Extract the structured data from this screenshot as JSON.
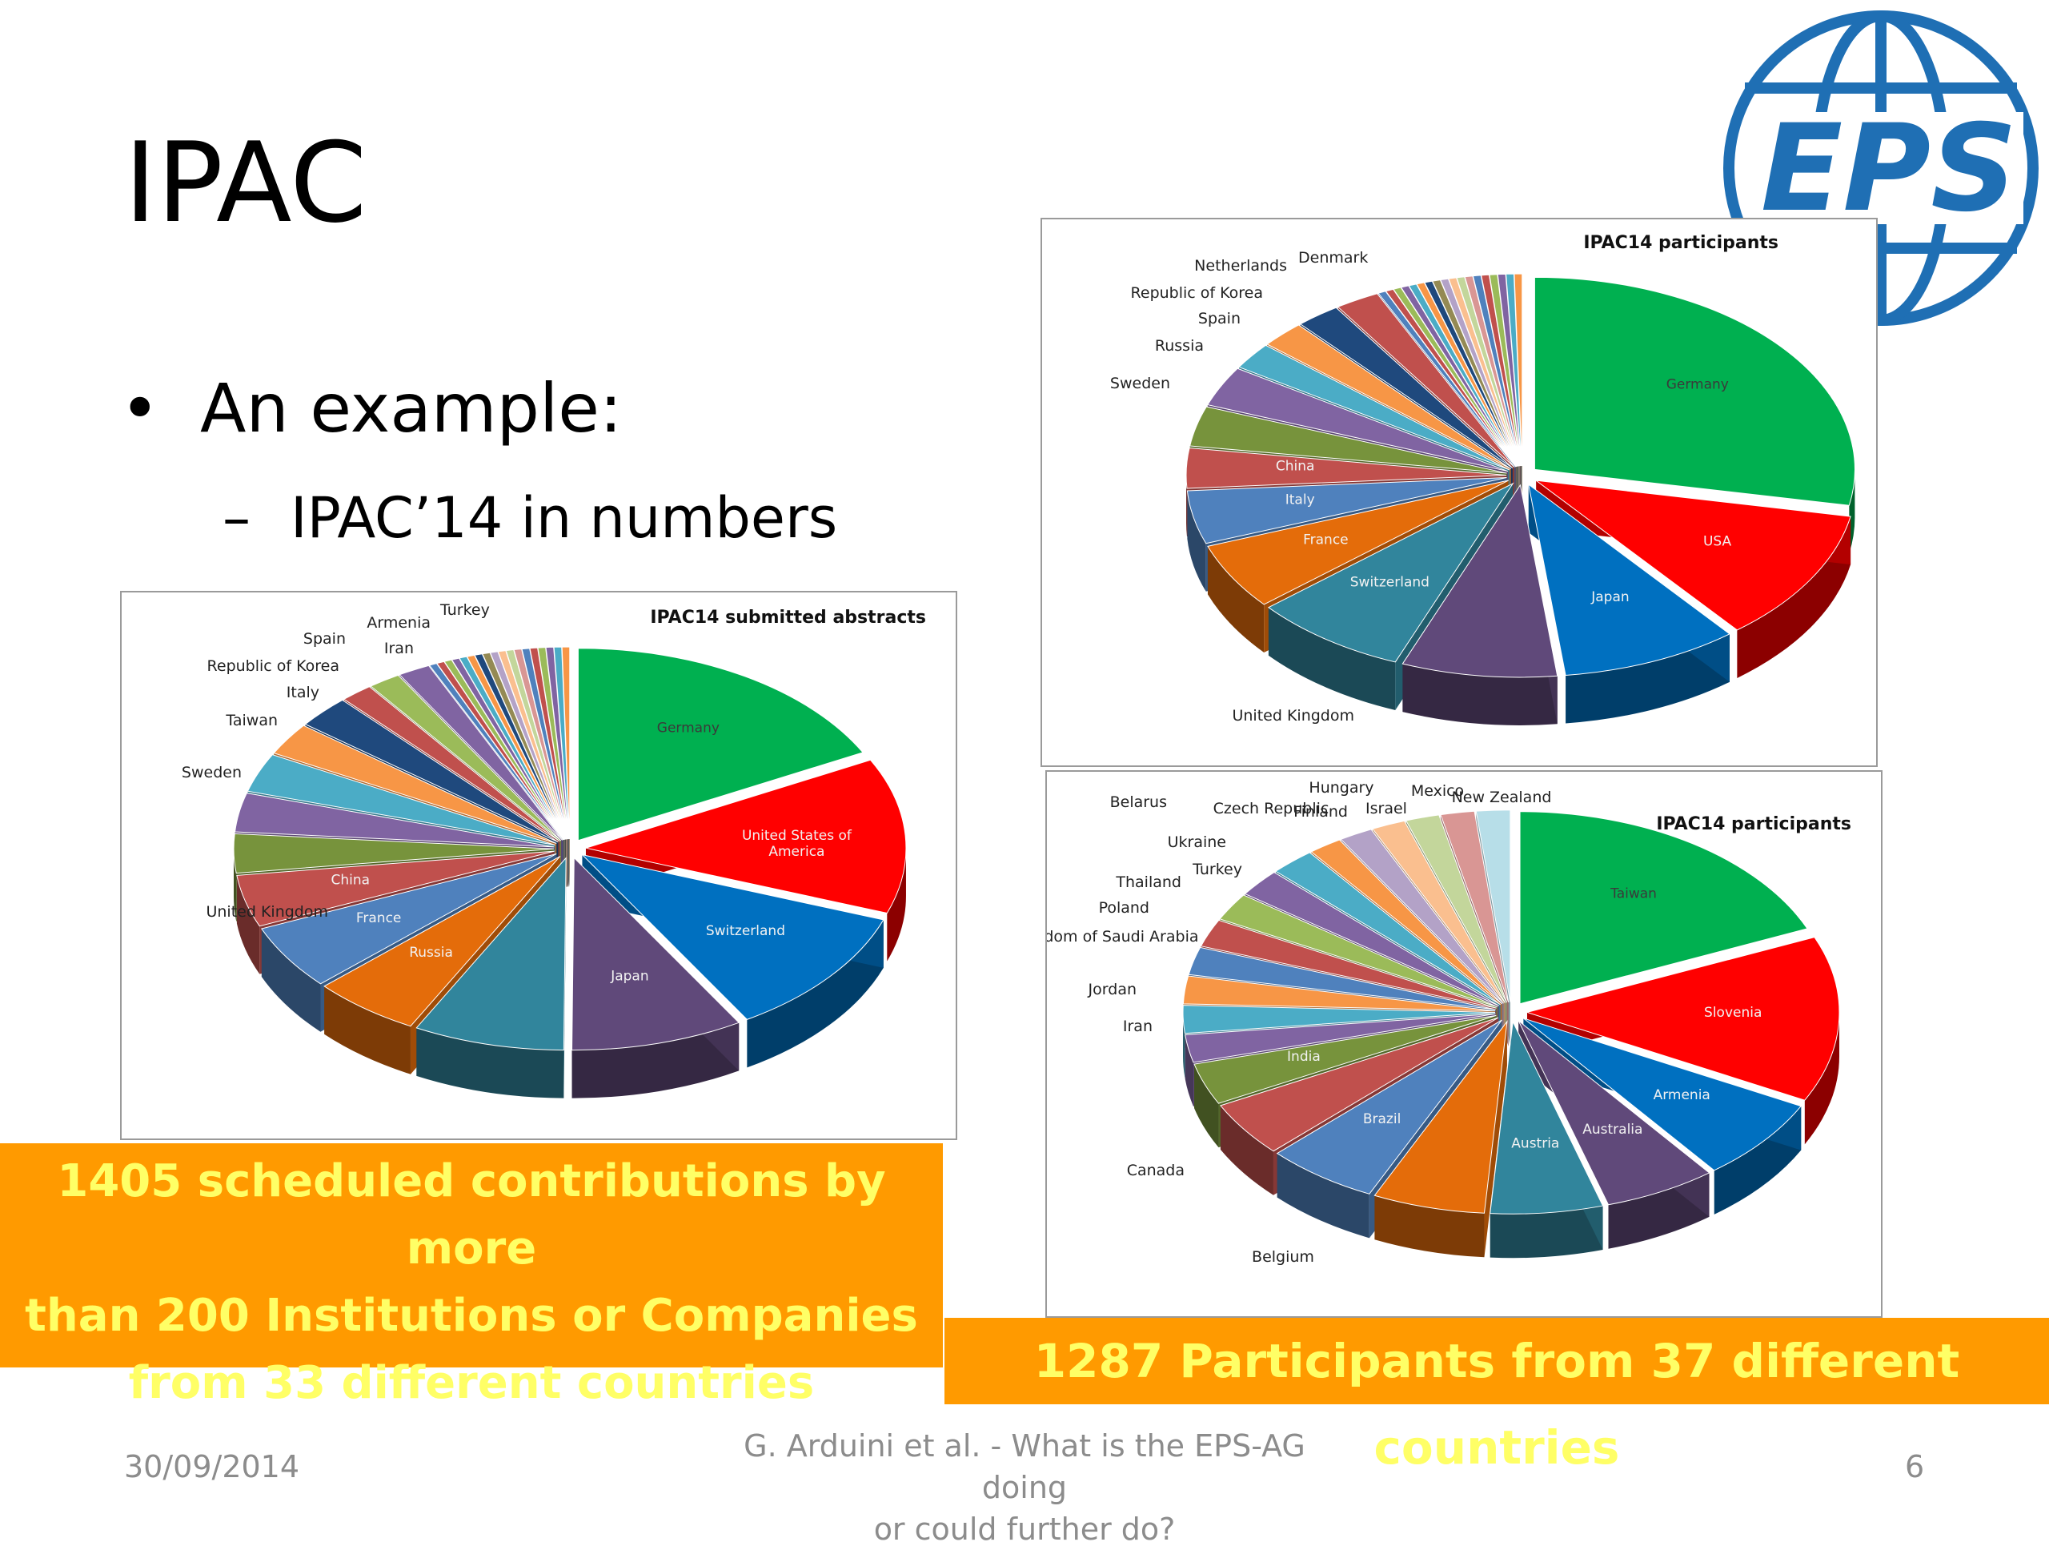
{
  "slide": {
    "title": "IPAC",
    "bullet": "An example:",
    "sub_bullet": "IPAC’14 in numbers",
    "bullet_symbol": "•",
    "dash_symbol": "–"
  },
  "callouts": {
    "left": [
      "1405 scheduled contributions by more",
      "than 200 Institutions or Companies",
      "from 33 different countries"
    ],
    "right": "1287 Participants from 37 different countries"
  },
  "footer": {
    "date": "30/09/2014",
    "center_line1": "G. Arduini et al. - What is the EPS-AG doing",
    "center_line2": "or could further do?",
    "page": "6"
  },
  "logo": {
    "text": "EPS",
    "color": "#1f6fb4"
  },
  "chart_data": [
    {
      "type": "pie",
      "style": "3d-exploded",
      "title": "IPAC14  submitted abstracts",
      "labels": [
        "Germany",
        "United States of America",
        "Switzerland",
        "Japan",
        "United Kingdom",
        "Russia",
        "France",
        "China",
        "Sweden",
        "Taiwan",
        "Italy",
        "Republic of Korea",
        "Spain",
        "Iran",
        "Armenia",
        "Turkey"
      ],
      "inside_labels": [
        "Germany",
        "United States of America",
        "Switzerland",
        "Japan",
        "Russia",
        "France",
        "China"
      ],
      "values": [
        16,
        12,
        10,
        8,
        7,
        5,
        5,
        4,
        3,
        3,
        3,
        2.5,
        2.5,
        1.5,
        1.5,
        1.5
      ],
      "other_small_slices": 18,
      "colors": [
        "#00b050",
        "#ff0000",
        "#0070c0",
        "#60497a",
        "#31859c",
        "#e46c0a",
        "#4f81bd",
        "#c0504d",
        "#77933c",
        "#8064a2",
        "#4bacc6",
        "#f79646",
        "#1f497d",
        "#c0504d",
        "#9bbb59",
        "#8064a2"
      ]
    },
    {
      "type": "pie",
      "style": "3d-exploded",
      "title": "IPAC14  participants",
      "labels": [
        "Germany",
        "USA",
        "Japan",
        "United Kingdom",
        "Switzerland",
        "France",
        "Italy",
        "China",
        "Sweden",
        "Russia",
        "Spain",
        "Republic of Korea",
        "Netherlands",
        "Denmark"
      ],
      "inside_labels": [
        "Germany",
        "USA",
        "Japan",
        "Switzerland",
        "France",
        "Italy",
        "China"
      ],
      "values": [
        25,
        10,
        8,
        7,
        7,
        5,
        4,
        3,
        3,
        3,
        2,
        2,
        2,
        2
      ],
      "other_small_slices": 18,
      "colors": [
        "#00b050",
        "#ff0000",
        "#0070c0",
        "#60497a",
        "#31859c",
        "#e46c0a",
        "#4f81bd",
        "#c0504d",
        "#77933c",
        "#8064a2",
        "#4bacc6",
        "#f79646",
        "#1f497d",
        "#c0504d"
      ]
    },
    {
      "type": "pie",
      "style": "3d-exploded",
      "title": "IPAC14  participants",
      "labels": [
        "Taiwan",
        "Slovenia",
        "Armenia",
        "Australia",
        "Austria",
        "Belgium",
        "Brazil",
        "Canada",
        "India",
        "Iran",
        "Jordan",
        "Kingdom of Saudi Arabia",
        "Poland",
        "Thailand",
        "Turkey",
        "Ukraine",
        "Belarus",
        "Czech Republic",
        "Hungary",
        "Finland",
        "Israel",
        "Mexico",
        "New Zealand"
      ],
      "inside_labels": [
        "Taiwan",
        "Slovenia",
        "Armenia",
        "Australia",
        "Austria",
        "Brazil",
        "India"
      ],
      "values": [
        16,
        12,
        6,
        5,
        5,
        5,
        5,
        4,
        3,
        2,
        2,
        2,
        2,
        2,
        2,
        2,
        2,
        1.5,
        1.5,
        1.5,
        1.5,
        1.5,
        1.5
      ],
      "other_small_slices": 0,
      "colors": [
        "#00b050",
        "#ff0000",
        "#0070c0",
        "#60497a",
        "#31859c",
        "#e46c0a",
        "#4f81bd",
        "#c0504d",
        "#77933c",
        "#8064a2",
        "#4bacc6",
        "#f79646",
        "#4f81bd",
        "#c0504d",
        "#9bbb59",
        "#8064a2",
        "#4bacc6",
        "#f79646",
        "#b3a2c7",
        "#fabf8f",
        "#c3d69b",
        "#d99694",
        "#b7dee8"
      ]
    }
  ]
}
